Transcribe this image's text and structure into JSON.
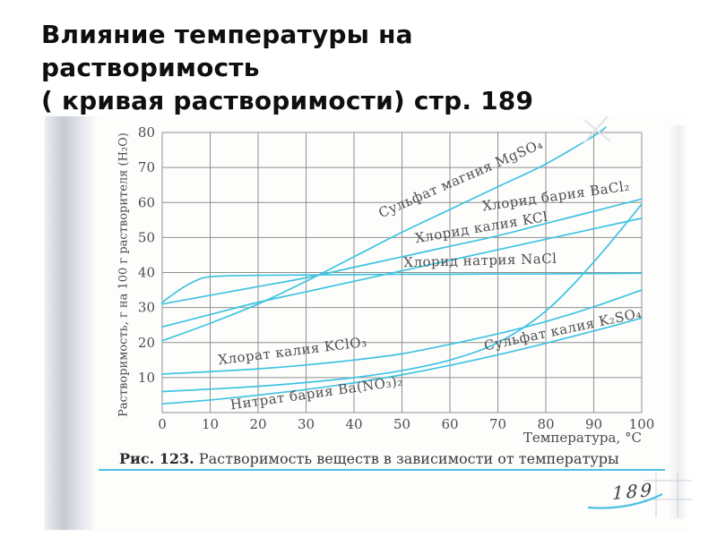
{
  "slide": {
    "title_lines": [
      "Влияние температуры на",
      "растворимость",
      "( кривая растворимости) стр. 189"
    ]
  },
  "figure_caption": {
    "number": "Рис. 123.",
    "text": " Растворимость веществ в зависимости от температуры"
  },
  "scan": {
    "page_number": "189"
  },
  "colors": {
    "curve": "#3fc3e2",
    "grid": "#8f8f8f",
    "axis_text": "#4c4c4c",
    "caption_accent": "#4cc3e1",
    "title": "#0f0f0f"
  },
  "chart_data": {
    "type": "line",
    "xlabel": "Температура, °С",
    "ylabel": "Растворимость, г на 100 г растворителя (H₂O)",
    "xlim": [
      0,
      100
    ],
    "ylim": [
      0,
      80
    ],
    "grid": true,
    "legend_position": "labels-on-curves",
    "x_ticks": [
      0,
      10,
      20,
      30,
      40,
      50,
      60,
      70,
      80,
      90,
      100
    ],
    "y_ticks": [
      10,
      20,
      30,
      40,
      50,
      60,
      70,
      80
    ],
    "line_color": "#3fc3e2",
    "series": [
      {
        "name": "MgSO4",
        "label": "Сульфат магния MgSO₄",
        "points": [
          [
            0,
            20.5
          ],
          [
            10,
            25.5
          ],
          [
            20,
            31
          ],
          [
            30,
            37.5
          ],
          [
            40,
            44.5
          ],
          [
            50,
            51.5
          ],
          [
            60,
            58
          ],
          [
            70,
            64.5
          ],
          [
            80,
            71
          ],
          [
            90,
            79
          ],
          [
            92.5,
            81.5
          ]
        ]
      },
      {
        "name": "BaCl2",
        "label": "Хлорид бария BaCl₂",
        "points": [
          [
            0,
            31
          ],
          [
            10,
            33.5
          ],
          [
            20,
            36
          ],
          [
            30,
            38.5
          ],
          [
            40,
            41.5
          ],
          [
            50,
            44.5
          ],
          [
            60,
            47.5
          ],
          [
            70,
            50.5
          ],
          [
            80,
            54
          ],
          [
            90,
            57.5
          ],
          [
            100,
            61
          ]
        ]
      },
      {
        "name": "KCl",
        "label": "Хлорид калия KCl",
        "points": [
          [
            0,
            24.5
          ],
          [
            10,
            28
          ],
          [
            20,
            31.5
          ],
          [
            30,
            34.5
          ],
          [
            40,
            37.5
          ],
          [
            50,
            40.5
          ],
          [
            60,
            43.5
          ],
          [
            70,
            46.5
          ],
          [
            80,
            49.5
          ],
          [
            90,
            52.5
          ],
          [
            100,
            55.5
          ]
        ]
      },
      {
        "name": "NaCl",
        "label": "Хлорид натрия NaCl",
        "points": [
          [
            0,
            31.5
          ],
          [
            3,
            34.5
          ],
          [
            6,
            37
          ],
          [
            10,
            38.8
          ],
          [
            20,
            39.2
          ],
          [
            30,
            39.3
          ],
          [
            40,
            39.4
          ],
          [
            50,
            39.5
          ],
          [
            60,
            39.5
          ],
          [
            70,
            39.6
          ],
          [
            80,
            39.6
          ],
          [
            90,
            39.7
          ],
          [
            100,
            39.8
          ]
        ]
      },
      {
        "name": "K2SO4",
        "label": "Сульфат калия K₂SO₄",
        "points": [
          [
            0,
            11
          ],
          [
            10,
            11.7
          ],
          [
            20,
            12.5
          ],
          [
            30,
            13.6
          ],
          [
            40,
            15
          ],
          [
            50,
            16.8
          ],
          [
            60,
            19.5
          ],
          [
            70,
            22.5
          ],
          [
            80,
            26
          ],
          [
            90,
            30.2
          ],
          [
            100,
            35
          ]
        ]
      },
      {
        "name": "KClO3",
        "label": "Хлорат калия KClO₃",
        "points": [
          [
            0,
            6
          ],
          [
            10,
            6.7
          ],
          [
            20,
            7.5
          ],
          [
            30,
            8.6
          ],
          [
            40,
            10
          ],
          [
            50,
            12
          ],
          [
            60,
            15
          ],
          [
            70,
            20
          ],
          [
            80,
            29
          ],
          [
            90,
            43
          ],
          [
            100,
            59.5
          ]
        ]
      },
      {
        "name": "BaNO32",
        "label": "Нитрат бария Ba(NO₃)₂",
        "points": [
          [
            0,
            2.5
          ],
          [
            10,
            3.6
          ],
          [
            20,
            5
          ],
          [
            30,
            6.6
          ],
          [
            40,
            8.5
          ],
          [
            50,
            10.8
          ],
          [
            60,
            13.5
          ],
          [
            70,
            16.5
          ],
          [
            80,
            19.8
          ],
          [
            90,
            23.3
          ],
          [
            100,
            27
          ]
        ]
      }
    ]
  }
}
